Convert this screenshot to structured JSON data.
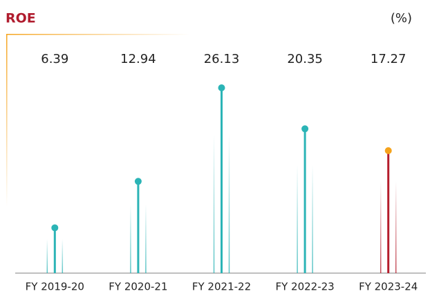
{
  "chart_data": {
    "type": "lollipop",
    "title": "ROE",
    "unit_label": "(%)",
    "categories": [
      "FY 2019-20",
      "FY 2020-21",
      "FY 2021-22",
      "FY 2022-23",
      "FY 2023-24"
    ],
    "values": [
      6.39,
      12.94,
      26.13,
      20.35,
      17.27
    ],
    "colors": [
      "#2bb4b6",
      "#2bb4b6",
      "#2bb4b6",
      "#2bb4b6",
      "#f5a31c"
    ],
    "stem_colors": [
      "#2bb4b6",
      "#2bb4b6",
      "#2bb4b6",
      "#2bb4b6",
      "#b51d2c"
    ]
  }
}
